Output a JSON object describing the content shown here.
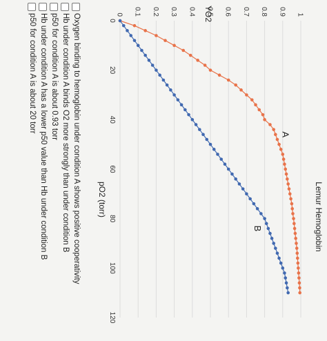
{
  "chart_data": {
    "type": "scatter",
    "title": "Lemur Hemoglobin",
    "xlabel": "pO2 (torr)",
    "ylabel": "YO2",
    "xlim": [
      0,
      120
    ],
    "ylim": [
      0,
      1
    ],
    "xticks": [
      0,
      20,
      40,
      60,
      80,
      100,
      120
    ],
    "yticks": [
      0,
      0.1,
      0.2,
      0.3,
      0.4,
      0.5,
      0.6,
      0.7,
      0.8,
      0.9,
      1
    ],
    "grid": true,
    "series": [
      {
        "name": "A",
        "color": "#e8734a",
        "x": [
          0,
          2,
          4,
          6,
          8,
          10,
          12,
          14,
          16,
          18,
          20,
          22,
          24,
          26,
          28,
          30,
          32,
          34,
          36,
          38,
          40,
          42,
          44,
          46,
          48,
          50,
          52,
          54,
          56,
          58,
          60,
          62,
          64,
          66,
          68,
          70,
          72,
          74,
          76,
          78,
          80,
          82,
          84,
          86,
          88,
          90,
          92,
          94,
          96,
          98,
          100,
          102,
          104,
          106,
          108,
          110
        ],
        "y": [
          0,
          0.08,
          0.14,
          0.2,
          0.25,
          0.3,
          0.35,
          0.39,
          0.43,
          0.47,
          0.5,
          0.55,
          0.6,
          0.64,
          0.67,
          0.7,
          0.73,
          0.75,
          0.77,
          0.79,
          0.8,
          0.83,
          0.85,
          0.86,
          0.87,
          0.88,
          0.89,
          0.9,
          0.905,
          0.91,
          0.915,
          0.92,
          0.925,
          0.93,
          0.935,
          0.94,
          0.945,
          0.95,
          0.953,
          0.956,
          0.96,
          0.963,
          0.966,
          0.969,
          0.972,
          0.975,
          0.978,
          0.98,
          0.982,
          0.984,
          0.986,
          0.988,
          0.99,
          0.992,
          0.994,
          0.995
        ]
      },
      {
        "name": "B",
        "color": "#4169b0",
        "x": [
          0,
          2,
          4,
          6,
          8,
          10,
          12,
          14,
          16,
          18,
          20,
          22,
          24,
          26,
          28,
          30,
          32,
          34,
          36,
          38,
          40,
          42,
          44,
          46,
          48,
          50,
          52,
          54,
          56,
          58,
          60,
          62,
          64,
          66,
          68,
          70,
          72,
          74,
          76,
          78,
          80,
          82,
          84,
          86,
          88,
          90,
          92,
          94,
          96,
          98,
          100,
          102,
          104,
          106,
          108,
          110
        ],
        "y": [
          0,
          0.02,
          0.04,
          0.06,
          0.08,
          0.1,
          0.12,
          0.14,
          0.16,
          0.18,
          0.2,
          0.22,
          0.24,
          0.26,
          0.28,
          0.3,
          0.32,
          0.34,
          0.36,
          0.38,
          0.4,
          0.42,
          0.44,
          0.46,
          0.48,
          0.5,
          0.52,
          0.54,
          0.56,
          0.58,
          0.6,
          0.62,
          0.64,
          0.66,
          0.68,
          0.7,
          0.72,
          0.74,
          0.76,
          0.78,
          0.8,
          0.81,
          0.82,
          0.83,
          0.84,
          0.85,
          0.86,
          0.87,
          0.88,
          0.89,
          0.9,
          0.91,
          0.915,
          0.92,
          0.925,
          0.93
        ]
      }
    ],
    "annotations": [
      "A",
      "B"
    ]
  },
  "question": {
    "options": [
      "Oxygen binding to hemoglobin under condition A shows positive cooperativity",
      "Hb under condition A binds O2 more strongly than under condition B",
      "p50 for condition A is about 0.93 torr",
      "Hb under condition A has a lower p50 value than Hb under condition B",
      "p50 for condition A is about 20 torr"
    ]
  }
}
